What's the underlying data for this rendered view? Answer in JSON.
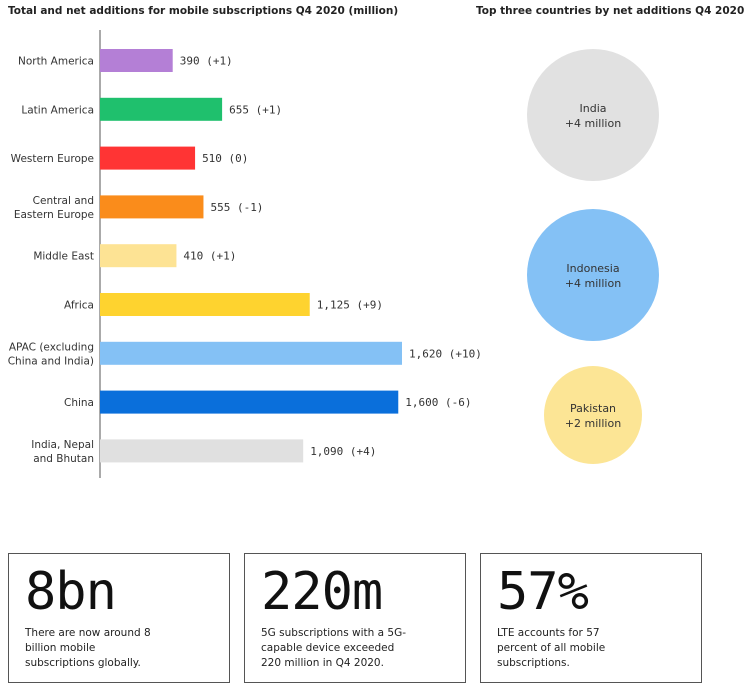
{
  "left_title": "Total and net additions for mobile subscriptions Q4 2020 (million)",
  "right_title": "Top three countries by net additions Q4 2020",
  "chart_data": [
    {
      "type": "bar",
      "orientation": "horizontal",
      "title": "Total and net additions for mobile subscriptions Q4 2020 (million)",
      "categories": [
        [
          "North America"
        ],
        [
          "Latin America"
        ],
        [
          "Western Europe"
        ],
        [
          "Central and",
          "Eastern Europe"
        ],
        [
          "Middle East"
        ],
        [
          "Africa"
        ],
        [
          "APAC (excluding",
          "China and India)"
        ],
        [
          "China"
        ],
        [
          "India, Nepal",
          "and Bhutan"
        ]
      ],
      "values": [
        390,
        655,
        510,
        555,
        410,
        1125,
        1620,
        1600,
        1090
      ],
      "net_additions": [
        1,
        1,
        0,
        -1,
        1,
        9,
        10,
        -6,
        4
      ],
      "value_labels": [
        "390 (+1)",
        "655 (+1)",
        "510 (0)",
        "555 (-1)",
        "410 (+1)",
        "1,125 (+9)",
        "1,620 (+10)",
        "1,600 (-6)",
        "1,090 (+4)"
      ],
      "colors": [
        "#b47fd6",
        "#1fc06d",
        "#ff3434",
        "#fa8c1b",
        "#fde394",
        "#fed32f",
        "#84c1f5",
        "#0a6fdb",
        "#e0e0e0"
      ],
      "xlim": [
        0,
        1620
      ],
      "grid": false
    },
    {
      "type": "bubble",
      "title": "Top three countries by net additions Q4 2020",
      "items": [
        {
          "name": "India",
          "value_label": "+4 million",
          "value": 4,
          "color": "#e1e1e1"
        },
        {
          "name": "Indonesia",
          "value_label": "+4 million",
          "value": 4,
          "color": "#84c1f5"
        },
        {
          "name": "Pakistan",
          "value_label": "+2 million",
          "value": 2,
          "color": "#fce595"
        }
      ]
    }
  ],
  "stats": [
    {
      "big": "8bn",
      "desc": "There are now around 8 billion mobile subscriptions globally."
    },
    {
      "big": "220m",
      "desc": "5G subscriptions with a 5G-capable device exceeded 220 million in Q4 2020."
    },
    {
      "big": "57%",
      "desc": "LTE accounts for 57 percent of all mobile subscriptions."
    }
  ]
}
